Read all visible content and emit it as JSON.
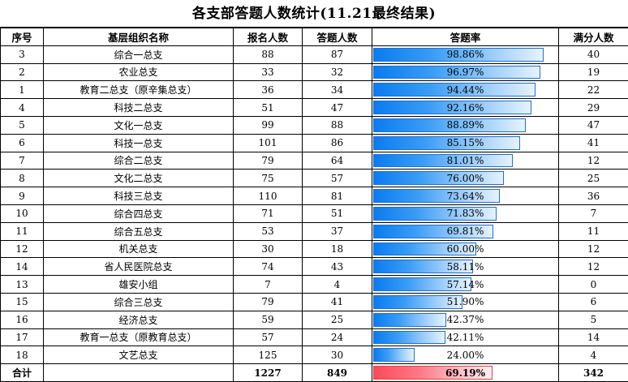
{
  "title": "各支部答题人数统计(11.21最终结果)",
  "headers": {
    "no": "序号",
    "name": "基层组织名称",
    "registered": "报名人数",
    "answered": "答题人数",
    "rate": "答题率",
    "full": "满分人数"
  },
  "rows": [
    {
      "no": "3",
      "name": "综合一总支",
      "registered": "88",
      "answered": "87",
      "rate": "98.86%",
      "rate_value": 0.9886,
      "full": "40"
    },
    {
      "no": "2",
      "name": "农业总支",
      "registered": "33",
      "answered": "32",
      "rate": "96.97%",
      "rate_value": 0.9697,
      "full": "19"
    },
    {
      "no": "1",
      "name": "教育二总支（原辛集总支）",
      "registered": "36",
      "answered": "34",
      "rate": "94.44%",
      "rate_value": 0.9444,
      "full": "22"
    },
    {
      "no": "4",
      "name": "科技二总支",
      "registered": "51",
      "answered": "47",
      "rate": "92.16%",
      "rate_value": 0.9216,
      "full": "29"
    },
    {
      "no": "5",
      "name": "文化一总支",
      "registered": "99",
      "answered": "88",
      "rate": "88.89%",
      "rate_value": 0.8889,
      "full": "47"
    },
    {
      "no": "6",
      "name": "科技一总支",
      "registered": "101",
      "answered": "86",
      "rate": "85.15%",
      "rate_value": 0.8515,
      "full": "41"
    },
    {
      "no": "7",
      "name": "综合二总支",
      "registered": "79",
      "answered": "64",
      "rate": "81.01%",
      "rate_value": 0.8101,
      "full": "12"
    },
    {
      "no": "8",
      "name": "文化二总支",
      "registered": "75",
      "answered": "57",
      "rate": "76.00%",
      "rate_value": 0.76,
      "full": "25"
    },
    {
      "no": "9",
      "name": "科技三总支",
      "registered": "110",
      "answered": "81",
      "rate": "73.64%",
      "rate_value": 0.7364,
      "full": "36"
    },
    {
      "no": "10",
      "name": "综合四总支",
      "registered": "71",
      "answered": "51",
      "rate": "71.83%",
      "rate_value": 0.7183,
      "full": "7"
    },
    {
      "no": "11",
      "name": "综合五总支",
      "registered": "53",
      "answered": "37",
      "rate": "69.81%",
      "rate_value": 0.6981,
      "full": "11"
    },
    {
      "no": "12",
      "name": "机关总支",
      "registered": "30",
      "answered": "18",
      "rate": "60.00%",
      "rate_value": 0.6,
      "full": "12"
    },
    {
      "no": "14",
      "name": "省人民医院总支",
      "registered": "74",
      "answered": "43",
      "rate": "58.11%",
      "rate_value": 0.5811,
      "full": "12"
    },
    {
      "no": "13",
      "name": "雄安小组",
      "registered": "7",
      "answered": "4",
      "rate": "57.14%",
      "rate_value": 0.5714,
      "full": "0"
    },
    {
      "no": "15",
      "name": "综合三总支",
      "registered": "79",
      "answered": "41",
      "rate": "51.90%",
      "rate_value": 0.519,
      "full": "6"
    },
    {
      "no": "16",
      "name": "经济总支",
      "registered": "59",
      "answered": "25",
      "rate": "42.37%",
      "rate_value": 0.4237,
      "full": "5"
    },
    {
      "no": "17",
      "name": "教育一总支（原教育总支）",
      "registered": "57",
      "answered": "24",
      "rate": "42.11%",
      "rate_value": 0.4211,
      "full": "14"
    },
    {
      "no": "18",
      "name": "文艺总支",
      "registered": "125",
      "answered": "30",
      "rate": "24.00%",
      "rate_value": 0.24,
      "full": "4"
    }
  ],
  "total": {
    "label": "合计",
    "registered": "1227",
    "answered": "849",
    "rate": "69.19%",
    "rate_value": 0.6919,
    "full": "342"
  },
  "colors": {
    "bar_blue": "#0a7bf0",
    "bar_red": "#ff4a58"
  }
}
